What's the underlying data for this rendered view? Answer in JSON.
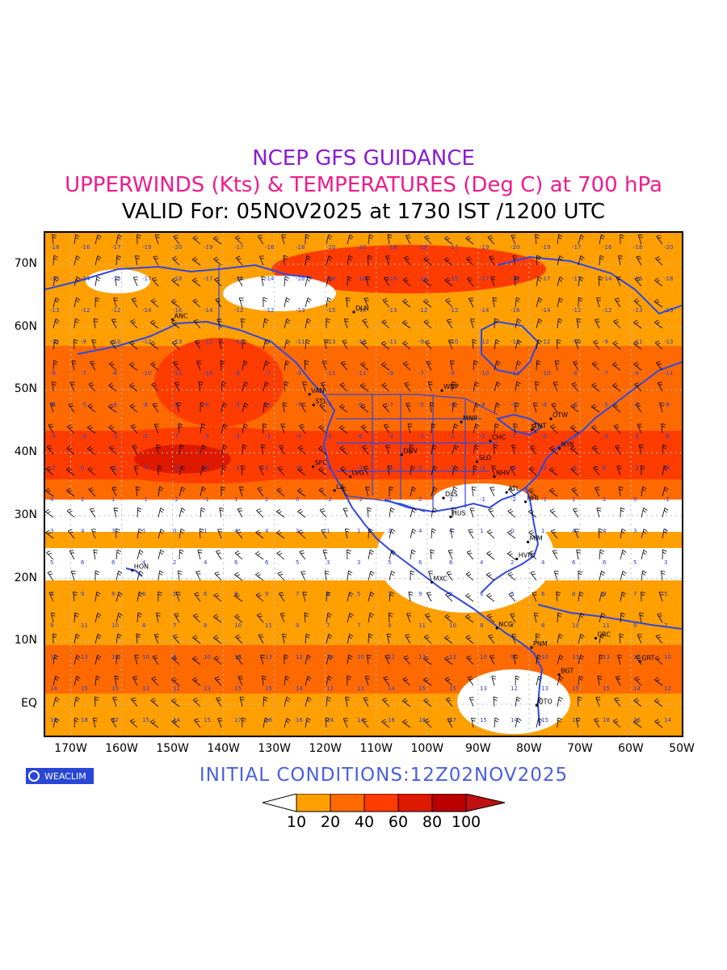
{
  "titles": {
    "line1": "NCEP GFS GUIDANCE",
    "line2": "UPPERWINDS (Kts) & TEMPERATURES (Deg C) at 700 hPa",
    "line3": "VALID For: 05NOV2025 at 1730 IST /1200 UTC"
  },
  "axes": {
    "lat_labels": [
      "70N",
      "60N",
      "50N",
      "40N",
      "30N",
      "20N",
      "10N",
      "EQ"
    ],
    "lon_labels": [
      "170W",
      "160W",
      "150W",
      "140W",
      "130W",
      "120W",
      "110W",
      "100W",
      "90W",
      "80W",
      "70W",
      "60W",
      "50W"
    ],
    "lat_range": [
      -5,
      75
    ],
    "lon_range": [
      -175,
      -50
    ]
  },
  "logo": {
    "text": "WEACLIM"
  },
  "initial_conditions": "INITIAL CONDITIONS:12Z02NOV2025",
  "colorbar": {
    "labels": [
      "10",
      "20",
      "40",
      "60",
      "80",
      "100"
    ],
    "colors": [
      "#ffffff",
      "#ff9f00",
      "#ff6a00",
      "#ff3c00",
      "#dd1a00",
      "#bb0000",
      "#c01010"
    ]
  },
  "stations": [
    {
      "id": "ANC",
      "lon": -150,
      "lat": 61.2
    },
    {
      "id": "DLN",
      "lon": -114.4,
      "lat": 62.4
    },
    {
      "id": "VAN",
      "lon": -123.1,
      "lat": 49.3
    },
    {
      "id": "STL",
      "lon": -122.3,
      "lat": 47.6
    },
    {
      "id": "WNP",
      "lon": -97.1,
      "lat": 49.9
    },
    {
      "id": "MNP",
      "lon": -93.3,
      "lat": 44.9
    },
    {
      "id": "OTW",
      "lon": -75.7,
      "lat": 45.4
    },
    {
      "id": "TNT",
      "lon": -79.4,
      "lat": 43.7
    },
    {
      "id": "CHC",
      "lon": -87.6,
      "lat": 41.9
    },
    {
      "id": "NYK",
      "lon": -74,
      "lat": 40.7
    },
    {
      "id": "DNV",
      "lon": -105,
      "lat": 39.7
    },
    {
      "id": "SFC",
      "lon": -122.4,
      "lat": 37.8
    },
    {
      "id": "SLO",
      "lon": -90.2,
      "lat": 38.6
    },
    {
      "id": "LVG",
      "lon": -115.1,
      "lat": 36.2
    },
    {
      "id": "NHV",
      "lon": -86.8,
      "lat": 36.2
    },
    {
      "id": "LA",
      "lon": -118.2,
      "lat": 34
    },
    {
      "id": "ATL",
      "lon": -84.4,
      "lat": 33.7
    },
    {
      "id": "DLS",
      "lon": -96.8,
      "lat": 32.8
    },
    {
      "id": "HHI",
      "lon": -80.7,
      "lat": 32.2
    },
    {
      "id": "HUS",
      "lon": -95.4,
      "lat": 29.8
    },
    {
      "id": "MIM",
      "lon": -80.2,
      "lat": 25.8
    },
    {
      "id": "HVN",
      "lon": -82.4,
      "lat": 23.1
    },
    {
      "id": "HON",
      "lon": -157.9,
      "lat": 21.3
    },
    {
      "id": "MXC",
      "lon": -99.1,
      "lat": 19.4
    },
    {
      "id": "NCG",
      "lon": -86.3,
      "lat": 12.1
    },
    {
      "id": "CRC",
      "lon": -66.9,
      "lat": 10.5
    },
    {
      "id": "PNM",
      "lon": -79.5,
      "lat": 9
    },
    {
      "id": "BGT",
      "lon": -74.1,
      "lat": 4.7
    },
    {
      "id": "GRT",
      "lon": -58.2,
      "lat": 6.8
    },
    {
      "id": "QTO",
      "lon": -78.5,
      "lat": -0.2
    }
  ]
}
